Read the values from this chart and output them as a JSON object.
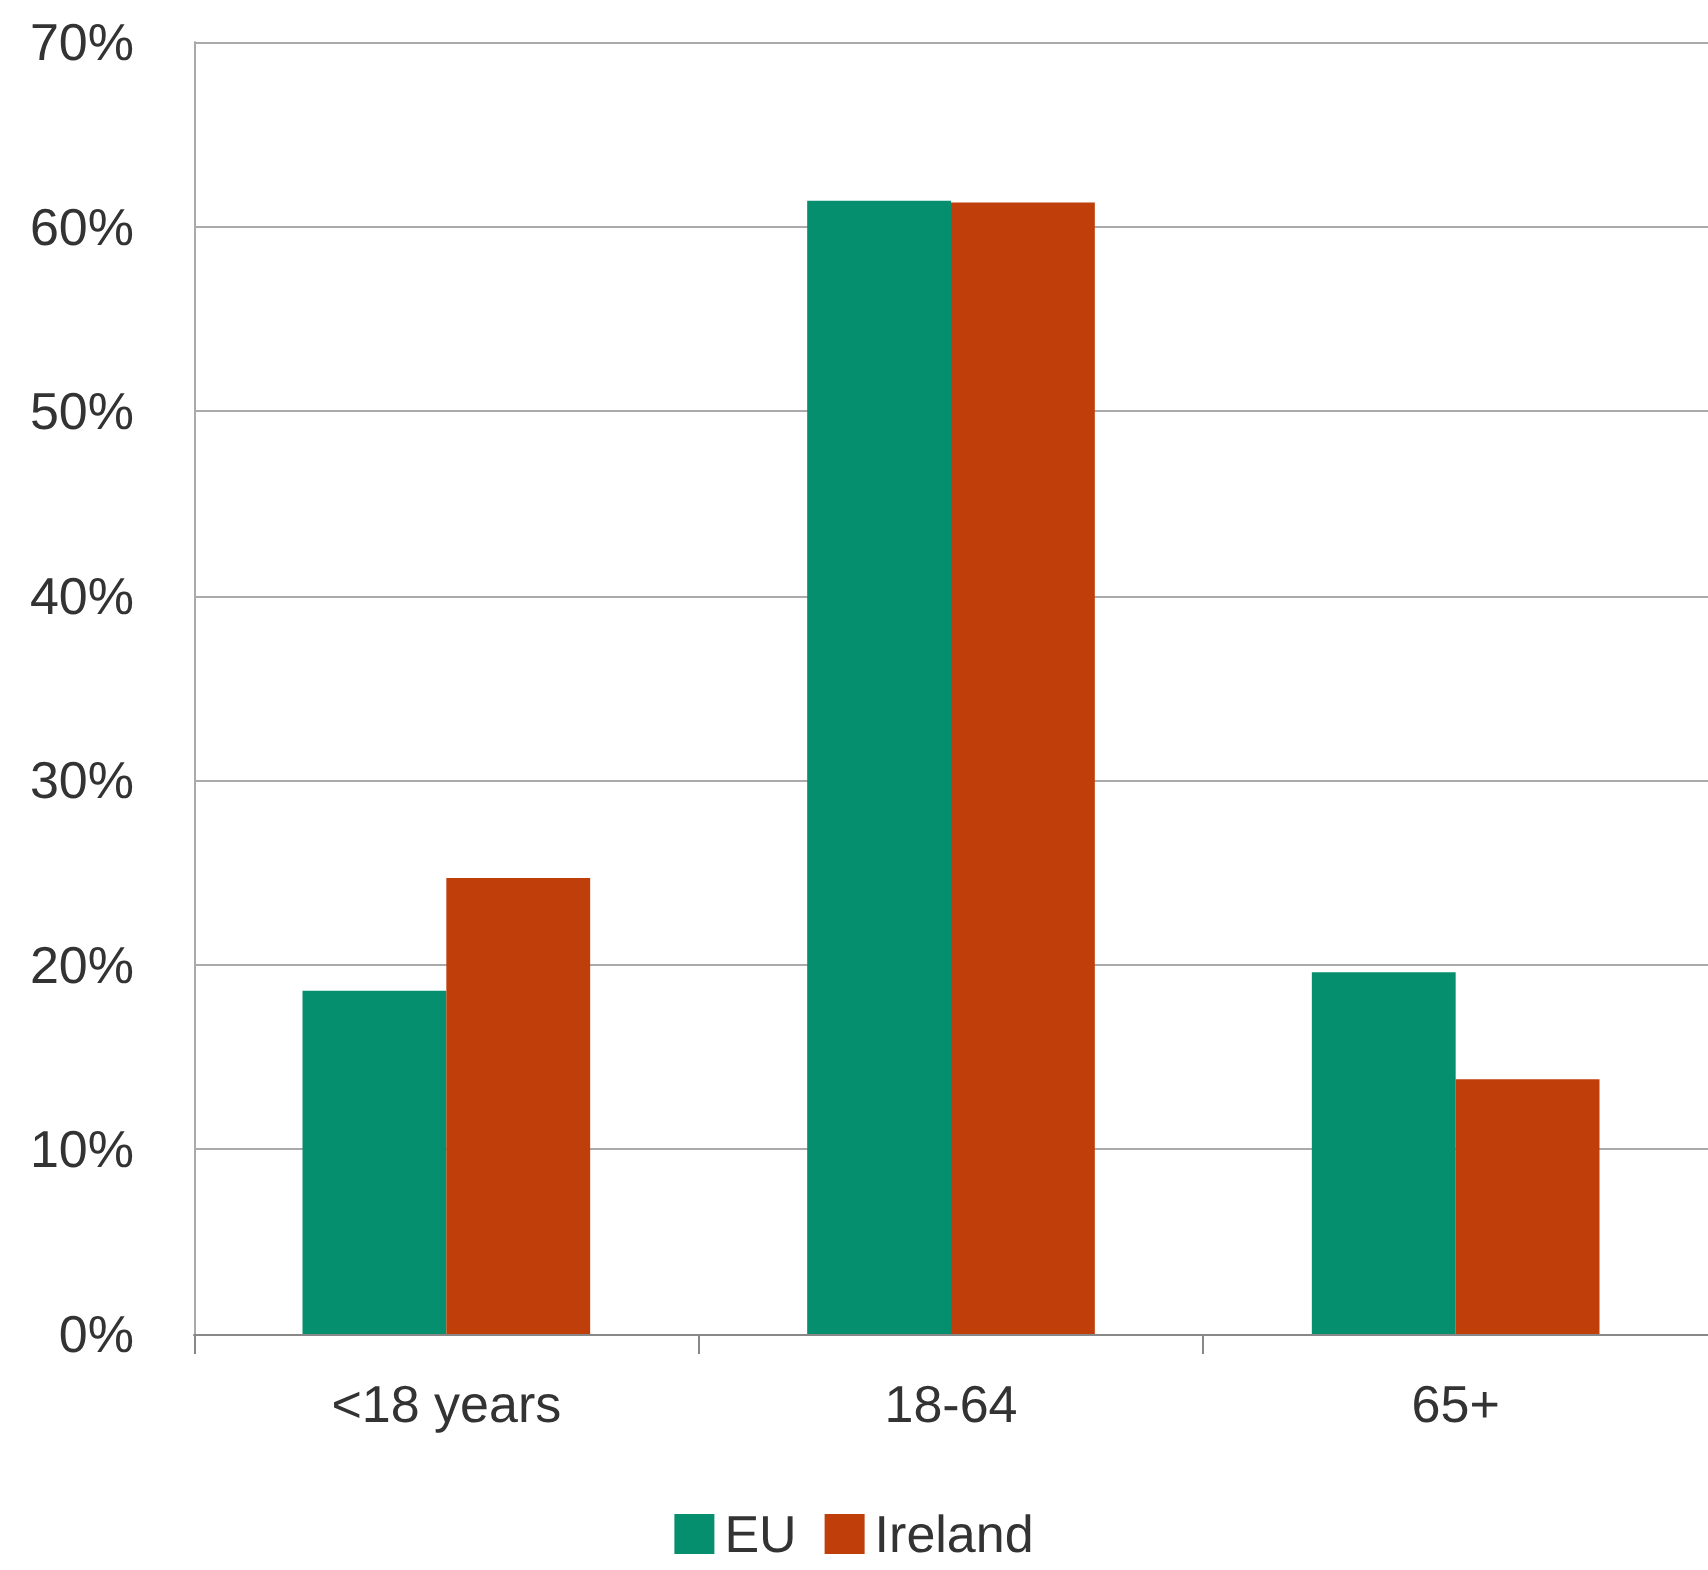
{
  "chart_data": {
    "type": "bar",
    "categories": [
      "<18 years",
      "18-64",
      "65+"
    ],
    "series": [
      {
        "name": "EU",
        "color": "#068f6f",
        "values": [
          18.6,
          61.4,
          19.6
        ]
      },
      {
        "name": "Ireland",
        "color": "#bf3e0a",
        "values": [
          24.7,
          61.3,
          13.8
        ]
      }
    ],
    "ylim": [
      0,
      70
    ],
    "yticks": [
      {
        "value": 0,
        "label": "0%"
      },
      {
        "value": 10,
        "label": "10%"
      },
      {
        "value": 20,
        "label": "20%"
      },
      {
        "value": 30,
        "label": "30%"
      },
      {
        "value": 40,
        "label": "40%"
      },
      {
        "value": 50,
        "label": "50%"
      },
      {
        "value": 60,
        "label": "60%"
      },
      {
        "value": 70,
        "label": "70%"
      }
    ],
    "grid": "y",
    "legend": "bottom"
  }
}
